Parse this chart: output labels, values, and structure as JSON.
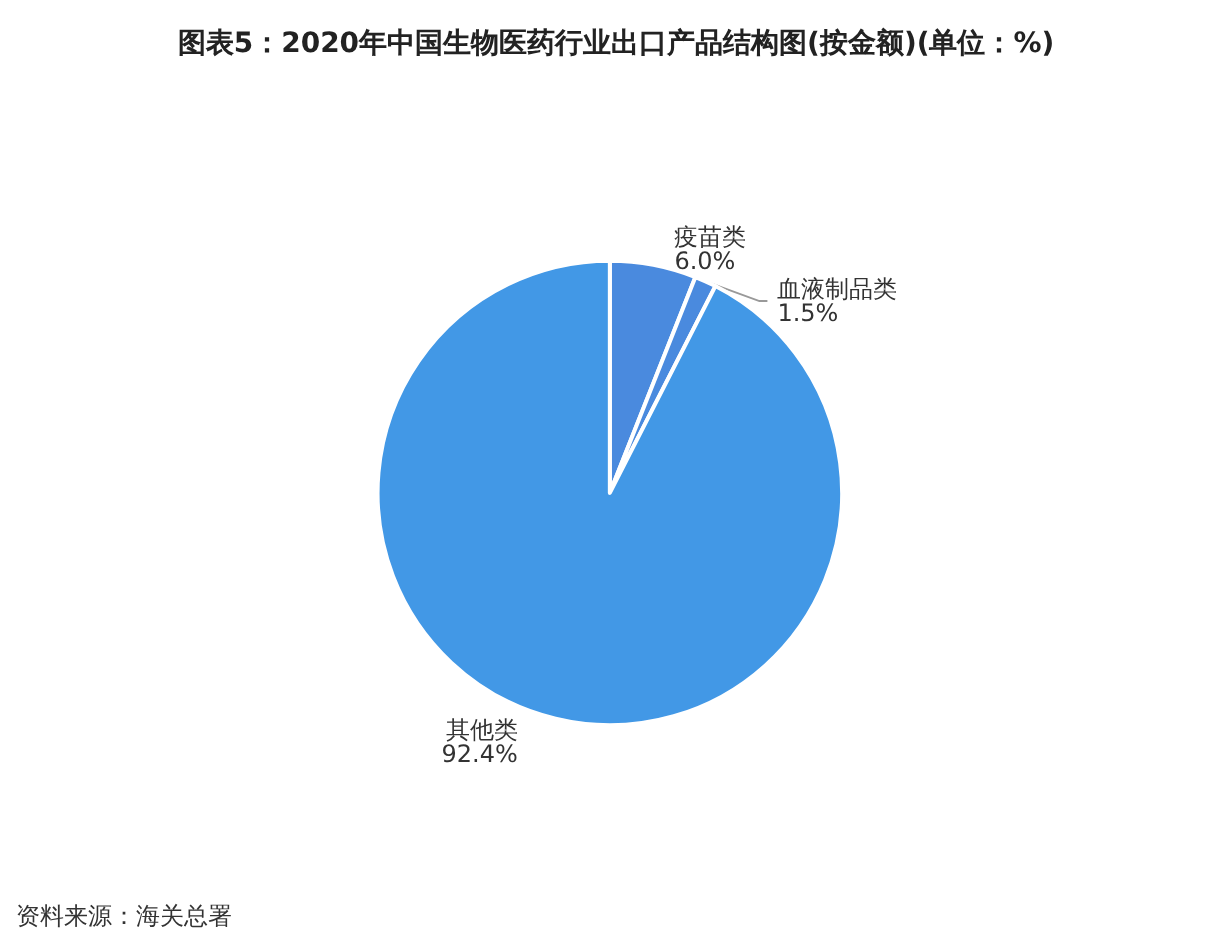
{
  "chart_data": {
    "type": "pie",
    "title": "图表5：2020年中国生物医药行业出口产品结构图(按金额)(单位：%)",
    "categories": [
      "疫苗类",
      "血液制品类",
      "其他类"
    ],
    "values": [
      6.0,
      1.5,
      92.4
    ],
    "colors": [
      "#4a8ade",
      "#4a8ade",
      "#4298e6"
    ],
    "value_labels": [
      "6.0%",
      "1.5%",
      "92.4%"
    ],
    "legend": false,
    "annotations": [
      "资料来源：海关总署"
    ]
  }
}
